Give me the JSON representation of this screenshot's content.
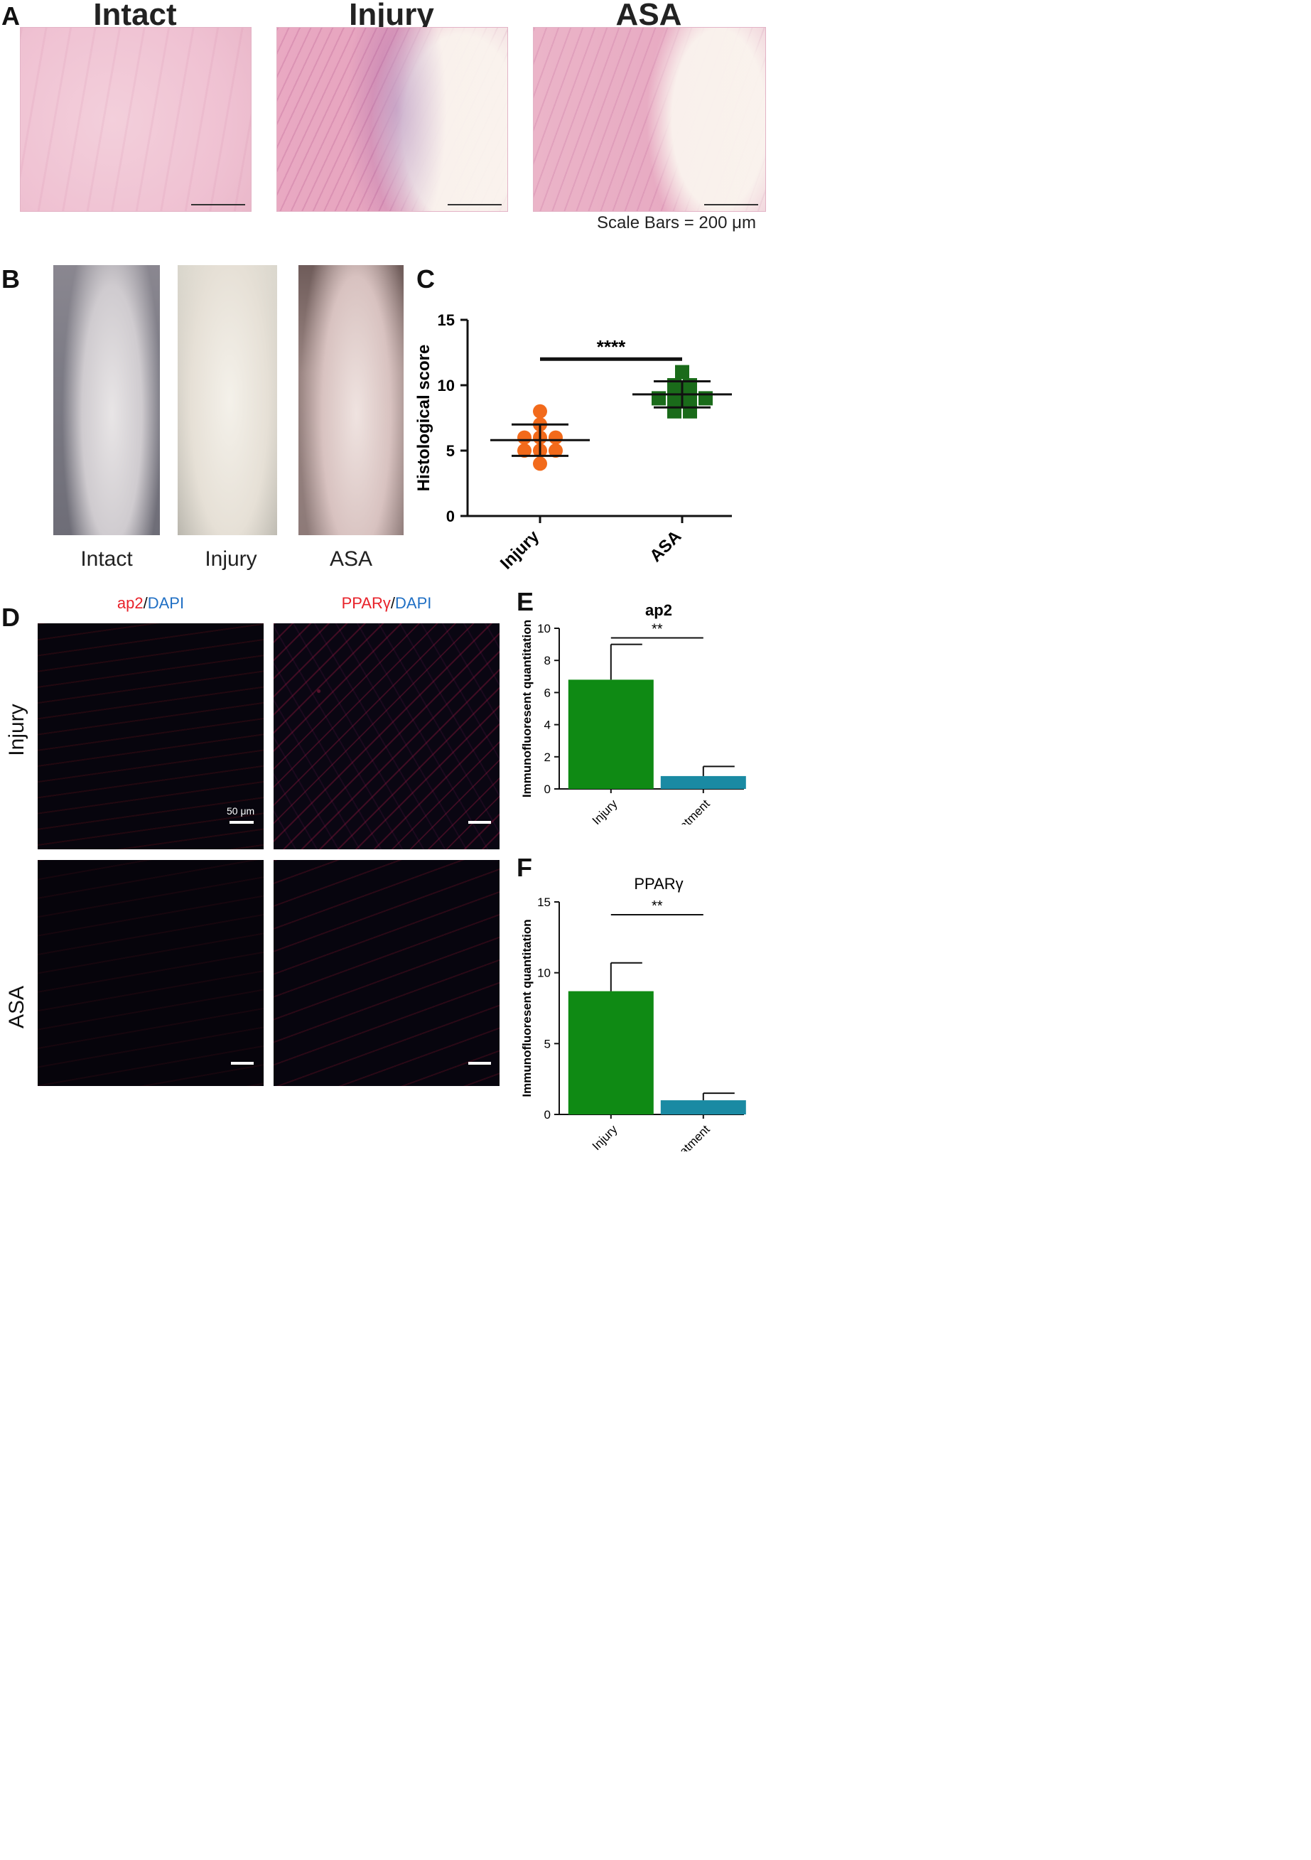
{
  "panels": {
    "A": {
      "label": "A",
      "titles": [
        "Intact",
        "Injury",
        "ASA"
      ],
      "scale_note": "Scale Bars = 200 μm"
    },
    "B": {
      "label": "B",
      "captions": [
        "Intact",
        "Injury",
        "ASA"
      ]
    },
    "C": {
      "label": "C"
    },
    "D": {
      "label": "D",
      "col1": {
        "part1": "ap2",
        "slash": "/",
        "part2": "DAPI"
      },
      "col2": {
        "part1": "PPARγ",
        "slash": "/",
        "part2": "DAPI"
      },
      "rows": [
        "Injury",
        "ASA"
      ],
      "scale_label": "50 μm"
    },
    "E": {
      "label": "E"
    },
    "F": {
      "label": "F"
    }
  },
  "colors": {
    "injury_dot": "#f26a1b",
    "asa_square": "#1a6b1a",
    "bar_injury": "#0f8a14",
    "bar_asa": "#1a8aa3"
  },
  "chart_data": [
    {
      "id": "C",
      "type": "scatter",
      "title": "",
      "xlabel": "",
      "ylabel": "Histological score",
      "categories": [
        "Injury",
        "ASA"
      ],
      "ylim": [
        0,
        15
      ],
      "yticks": [
        0,
        5,
        10,
        15
      ],
      "series": [
        {
          "category": "Injury",
          "points": [
            4,
            5,
            5,
            5,
            6,
            6,
            6,
            7,
            8
          ],
          "mean": 5.8,
          "sd_low": 4.6,
          "sd_high": 7.0
        },
        {
          "category": "ASA",
          "points": [
            8,
            8,
            9,
            9,
            9,
            9,
            10,
            10,
            11
          ],
          "mean": 9.3,
          "sd_low": 8.3,
          "sd_high": 10.3
        }
      ],
      "significance": "****"
    },
    {
      "id": "E",
      "type": "bar",
      "title": "ap2",
      "xlabel": "",
      "ylabel": "Immunofluoresent quantitation",
      "categories": [
        "Injury",
        "ASA treatment"
      ],
      "values": [
        6.8,
        0.8
      ],
      "error_high": [
        9.0,
        1.4
      ],
      "ylim": [
        0,
        10
      ],
      "yticks": [
        0,
        2,
        4,
        6,
        8,
        10
      ],
      "significance": "**"
    },
    {
      "id": "F",
      "type": "bar",
      "title": "PPARγ",
      "xlabel": "",
      "ylabel": "Immunofluoresent quantitation",
      "categories": [
        "Injury",
        "ASA treatment"
      ],
      "values": [
        8.7,
        1.0
      ],
      "error_high": [
        10.7,
        1.5
      ],
      "ylim": [
        0,
        15
      ],
      "yticks": [
        0,
        5,
        10,
        15
      ],
      "significance": "**"
    }
  ]
}
